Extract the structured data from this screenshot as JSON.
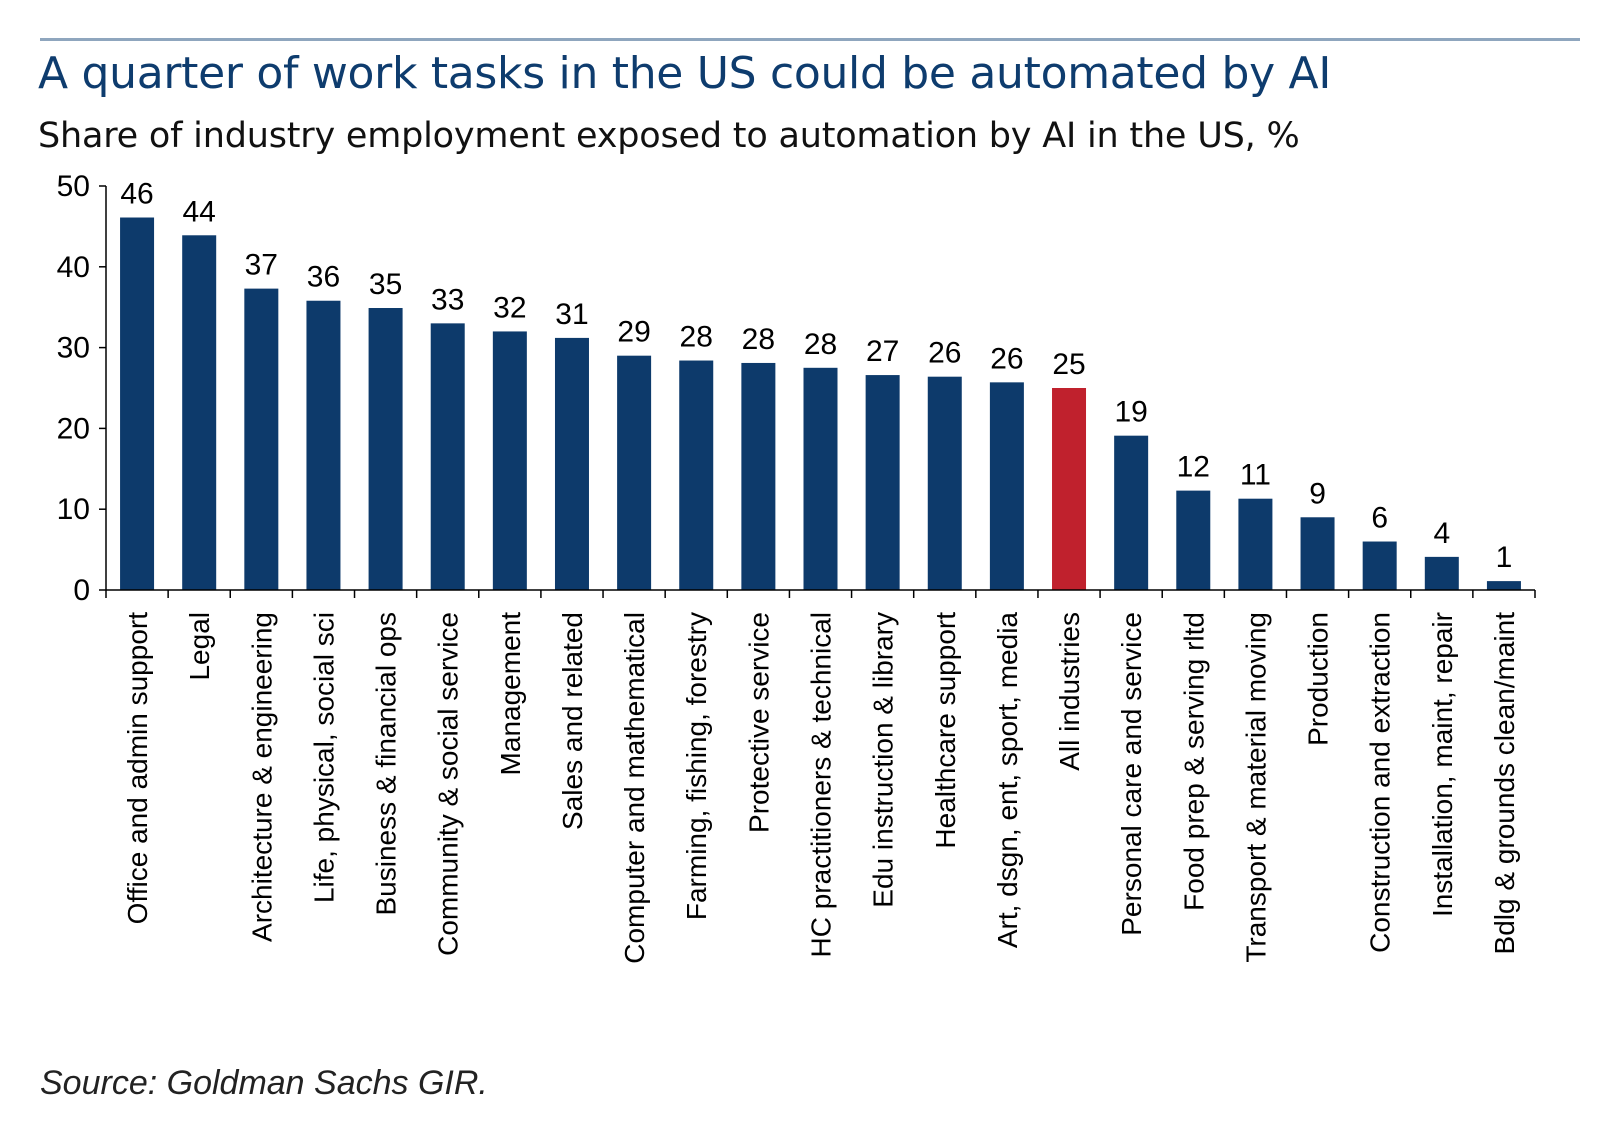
{
  "header": {
    "title": "A quarter of work tasks in the US could be automated by AI",
    "subtitle": "Share of industry employment exposed to automation by AI in the US, %"
  },
  "footer": {
    "source": "Source: Goldman Sachs GIR."
  },
  "colors": {
    "bar": "#0d3a6b",
    "highlight": "#c0212d",
    "title": "#0e3c6e",
    "rule": "#8fa6be"
  },
  "chart_data": {
    "type": "bar",
    "title": "A quarter of work tasks in the US could be automated by AI",
    "subtitle": "Share of industry employment exposed to automation by AI in the US, %",
    "xlabel": "",
    "ylabel": "",
    "ylim": [
      0,
      50
    ],
    "yticks": [
      0,
      10,
      20,
      30,
      40,
      50
    ],
    "grid": false,
    "categories": [
      "Office and admin support",
      "Legal",
      "Architecture & engineering",
      "Life, physical, social sci",
      "Business & financial ops",
      "Community & social service",
      "Management",
      "Sales and related",
      "Computer and mathematical",
      "Farming, fishing, forestry",
      "Protective service",
      "HC practitioners & technical",
      "Edu instruction & library",
      "Healthcare support",
      "Art, dsgn, ent, sport, media",
      "All industries",
      "Personal care and service",
      "Food prep & serving rltd",
      "Transport & material moving",
      "Production",
      "Construction and extraction",
      "Installation, maint, repair",
      "Bdlg & grounds clean/maint"
    ],
    "values": [
      46.1,
      43.9,
      37.3,
      35.8,
      34.9,
      33.0,
      32.0,
      31.2,
      29.0,
      28.4,
      28.1,
      27.5,
      26.6,
      26.4,
      25.7,
      25.0,
      19.1,
      12.3,
      11.3,
      9.0,
      6.0,
      4.1,
      1.1
    ],
    "labels": [
      "46",
      "44",
      "37",
      "36",
      "35",
      "33",
      "32",
      "31",
      "29",
      "28",
      "28",
      "28",
      "27",
      "26",
      "26",
      "25",
      "19",
      "12",
      "11",
      "9",
      "6",
      "4",
      "1"
    ],
    "highlight_category": "All industries"
  }
}
